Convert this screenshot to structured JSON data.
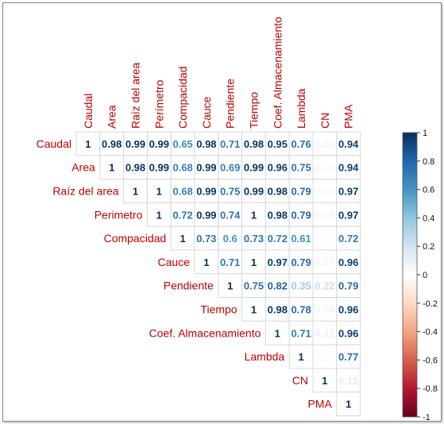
{
  "chart_data": {
    "type": "heatmap",
    "variables": [
      "Caudal",
      "Area",
      "Raíz del area",
      "Perímetro",
      "Compacidad",
      "Cauce",
      "Pendiente",
      "Tiempo",
      "Coef. Almacenamiento",
      "Lambda",
      "CN",
      "PMA"
    ],
    "row_labels": [
      "Caudal",
      "Area",
      "Raíz del area",
      "Perimetro",
      "Compacidad",
      "Cauce",
      "Pendiente",
      "Tiempo",
      "Coef. Almacenamiento",
      "Lambda",
      "CN",
      "PMA"
    ],
    "matrix_upper": [
      [
        1,
        0.98,
        0.99,
        0.99,
        0.65,
        0.98,
        0.71,
        0.98,
        0.95,
        0.76,
        0.06,
        0.94
      ],
      [
        1,
        0.98,
        0.99,
        0.68,
        0.99,
        0.69,
        0.99,
        0.96,
        0.75,
        0.06,
        0.94
      ],
      [
        1,
        1,
        0.68,
        0.99,
        0.75,
        0.99,
        0.98,
        0.79,
        0.06,
        0.97
      ],
      [
        1,
        0.72,
        0.99,
        0.74,
        1,
        0.98,
        0.79,
        0.06,
        0.97
      ],
      [
        1,
        0.73,
        0.6,
        0.73,
        0.72,
        0.61,
        0.04,
        0.72
      ],
      [
        1,
        0.71,
        1,
        0.97,
        0.79,
        0.07,
        0.96
      ],
      [
        1,
        0.75,
        0.82,
        0.35,
        0.22,
        0.79
      ],
      [
        1,
        0.98,
        0.78,
        0.08,
        0.96
      ],
      [
        1,
        0.71,
        0.11,
        0.96
      ],
      [
        1,
        0.02,
        0.77
      ],
      [
        1,
        0.12
      ],
      [
        1
      ]
    ],
    "colorbar": {
      "min": -1,
      "max": 1,
      "ticks": [
        "1",
        "0.8",
        "0.6",
        "0.4",
        "0.2",
        "0",
        "-0.2",
        "-0.4",
        "-0.6",
        "-0.8",
        "-1"
      ]
    },
    "colors": {
      "positive": "#0b3d6e",
      "negative": "#67001f",
      "label": "#c00000",
      "text_dark": "#0b2d5a"
    }
  }
}
